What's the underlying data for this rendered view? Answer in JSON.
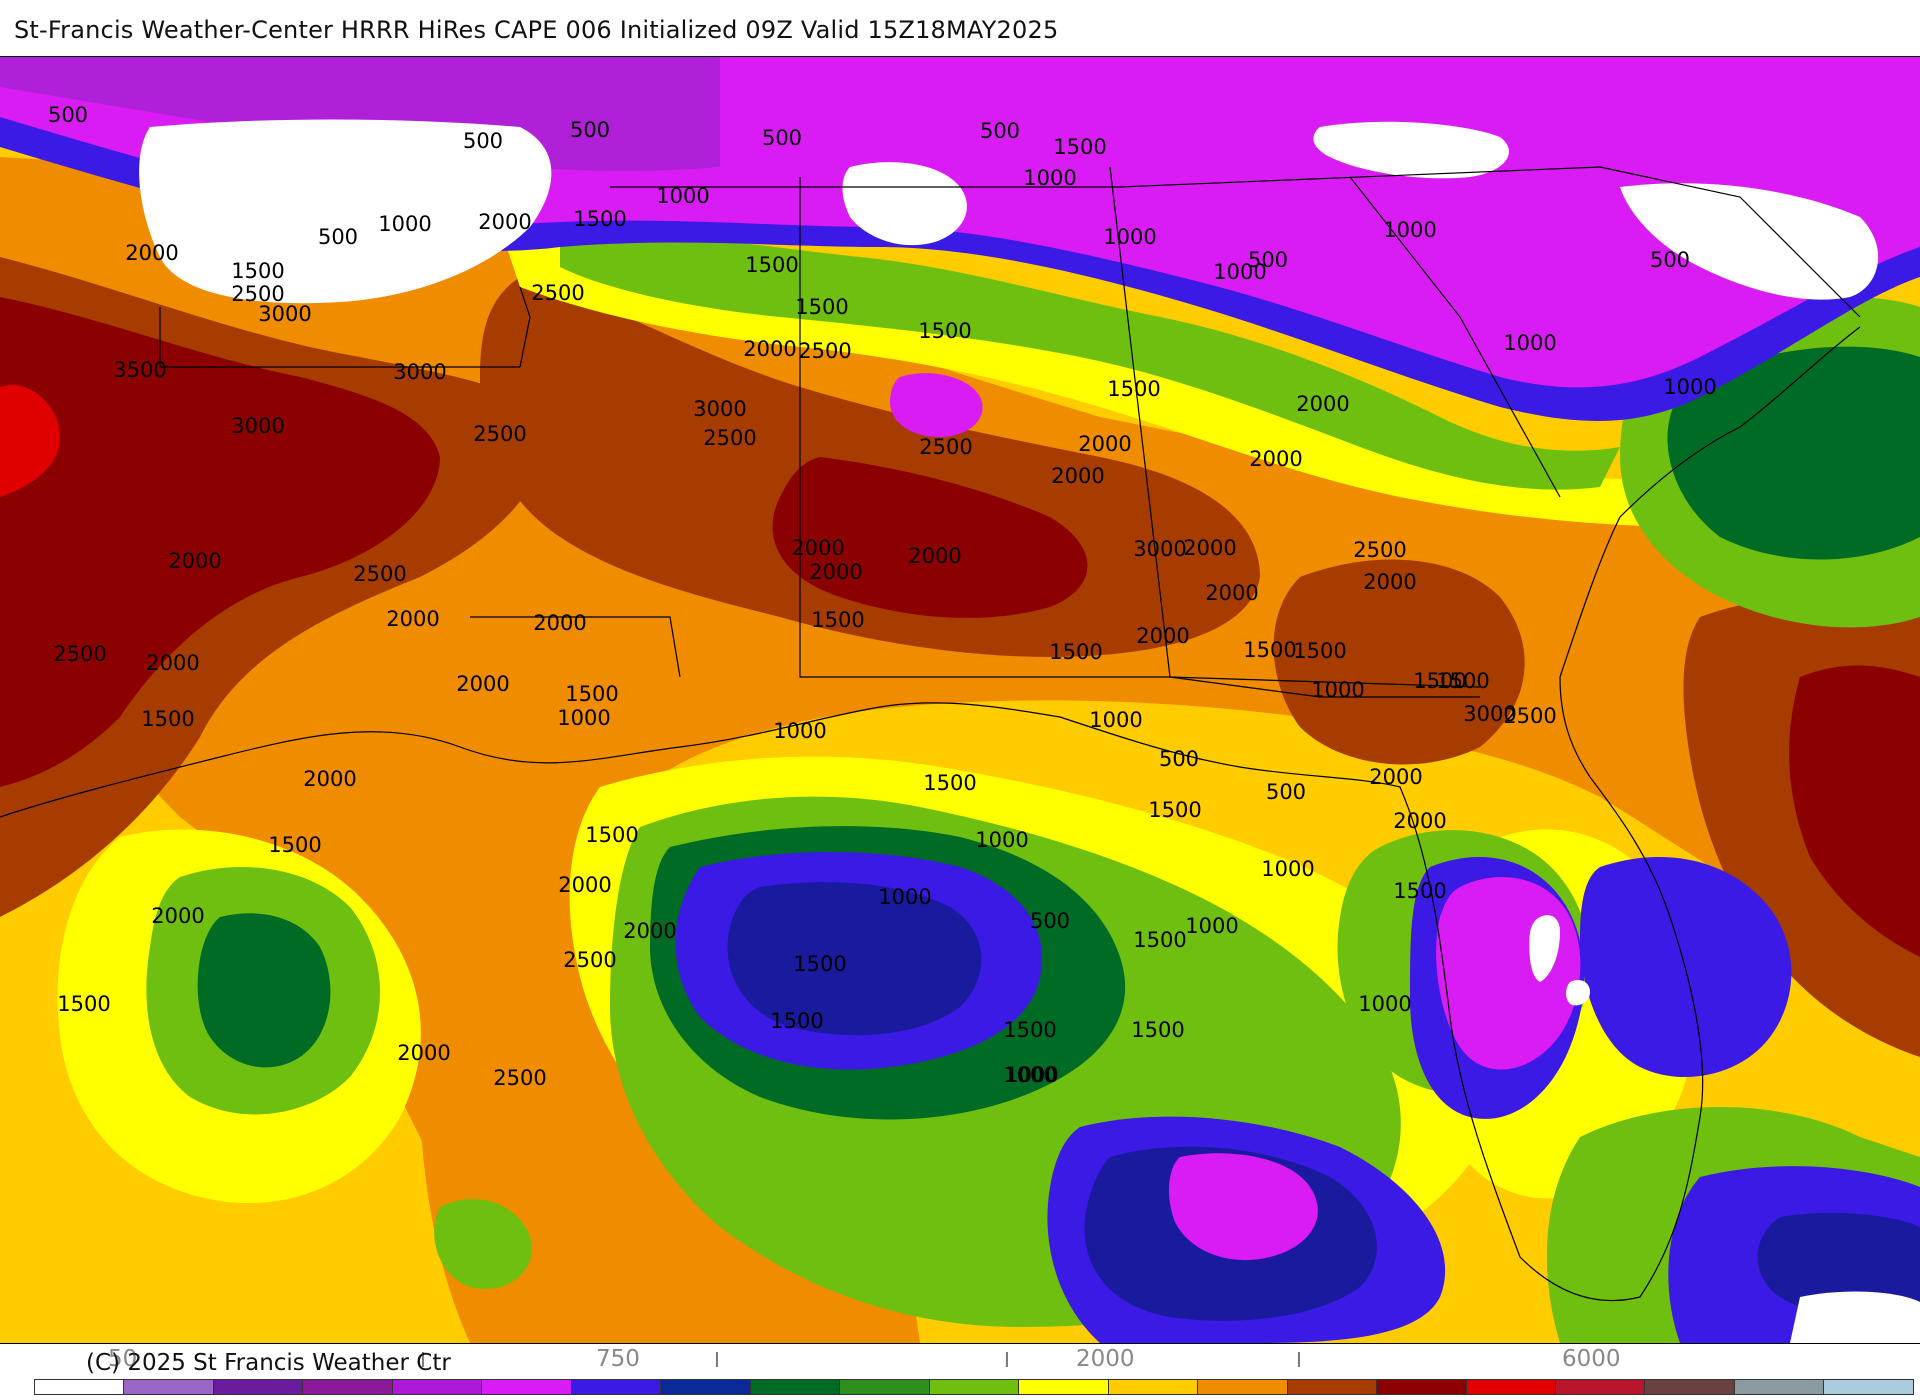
{
  "title": "St-Francis Weather-Center HRRR HiRes CAPE  006 Initialized  09Z Valid 15Z18MAY2025",
  "copyright": "(C) 2025 St Francis Weather Ctr",
  "colorbar": {
    "ticks": [
      "50",
      "750",
      "2000",
      "6000"
    ],
    "marks": [
      "I",
      "I",
      "I",
      "I"
    ],
    "colors": [
      "#ffffff",
      "#9b66c6",
      "#6a1a9c",
      "#8b1a9a",
      "#ad1ad6",
      "#d91cf3",
      "#3b1ae6",
      "#0a2a9a",
      "#006b25",
      "#2f8f1e",
      "#6fbf10",
      "#ffff00",
      "#ffcc00",
      "#f08c00",
      "#a63c00",
      "#8b0000",
      "#e00000",
      "#b8162a",
      "#6b4040",
      "#8a9aa0",
      "#aaccdd"
    ]
  },
  "map": {
    "colors": {
      "white": "#ffffff",
      "violet": "#d91cf3",
      "magenta": "#b020d8",
      "blue": "#3b1ae6",
      "navy": "#1a1a9e",
      "dkgreen": "#006b25",
      "green": "#6fbf10",
      "yellow": "#ffff00",
      "gold": "#ffcc00",
      "orange": "#f08c00",
      "brown": "#a63c00",
      "darkred": "#8b0000",
      "red": "#e00000"
    },
    "contour_labels": [
      "500",
      "500",
      "500",
      "500",
      "500",
      "500",
      "500",
      "500",
      "1000",
      "1000",
      "1000",
      "1000",
      "1000",
      "1000",
      "1000",
      "1000",
      "1500",
      "1500",
      "1500",
      "1500",
      "1500",
      "1500",
      "1500",
      "2000",
      "2000",
      "2000",
      "2000",
      "2000",
      "2000",
      "2500",
      "2500",
      "2500",
      "2500",
      "2500",
      "2500",
      "3000",
      "3000",
      "3000",
      "3000",
      "3000",
      "3500",
      "2000",
      "2000",
      "2000",
      "2000",
      "2500",
      "2000",
      "1500",
      "1500",
      "2000",
      "2000",
      "1500",
      "1500",
      "2000",
      "2500",
      "2000",
      "1500",
      "2000",
      "1000",
      "1000",
      "1500",
      "1500",
      "2000",
      "1500",
      "1500",
      "1000",
      "500",
      "500",
      "1000",
      "1500",
      "2000",
      "2000",
      "2500",
      "1500",
      "1000",
      "3000",
      "1500",
      "1500",
      "1000",
      "500",
      "1000",
      "1500",
      "1500",
      "1000",
      "1500",
      "1000",
      "1000",
      "2000",
      "2500",
      "1500",
      "2000",
      "1500",
      "2500",
      "2000",
      "2000",
      "1500",
      "1000",
      "2500",
      "2000",
      "2000",
      "2000"
    ]
  }
}
